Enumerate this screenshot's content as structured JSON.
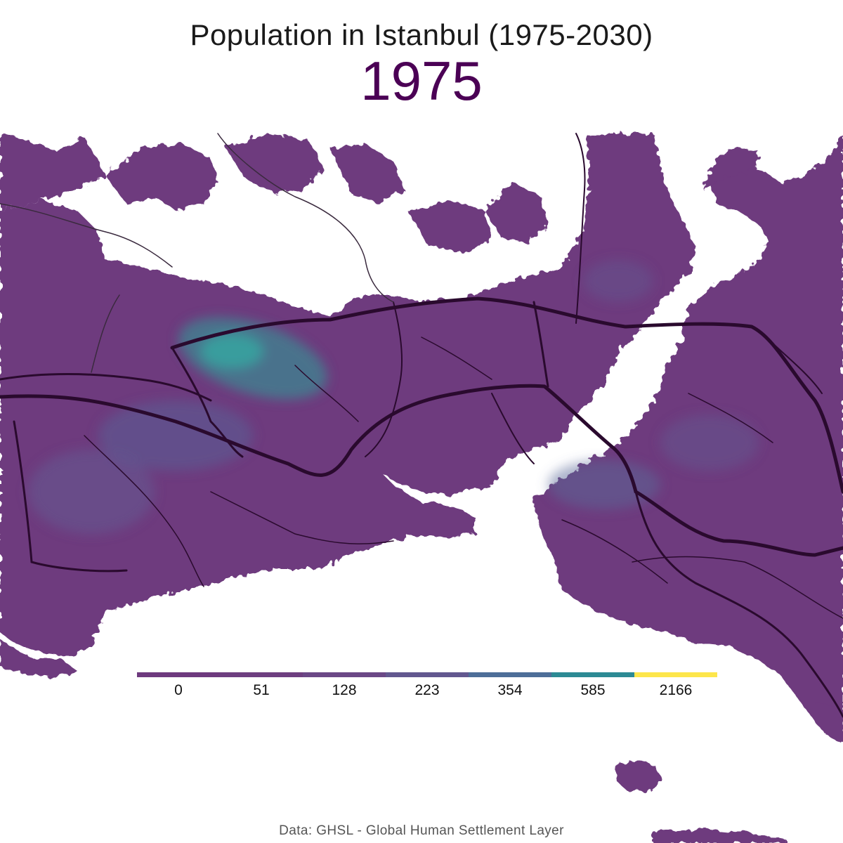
{
  "title": "Population in Istanbul (1975-2030)",
  "year": "1975",
  "caption": "Data: GHSL - Global Human Settlement Layer",
  "legend": {
    "breaks": [
      "0",
      "51",
      "128",
      "223",
      "354",
      "585",
      "2166"
    ],
    "colors": [
      "#6e3a7e",
      "#6e3f80",
      "#6b4886",
      "#62588f",
      "#4d6e98",
      "#2c8a94",
      "#fde64b"
    ]
  },
  "colors": {
    "land": "#6e3a7e",
    "land_dense": "#5a5f96",
    "hotspot": "#3a9a9a",
    "roads": "#2a0a2e",
    "title": "#1a1a1a",
    "year": "#4b0055",
    "caption": "#555555"
  }
}
